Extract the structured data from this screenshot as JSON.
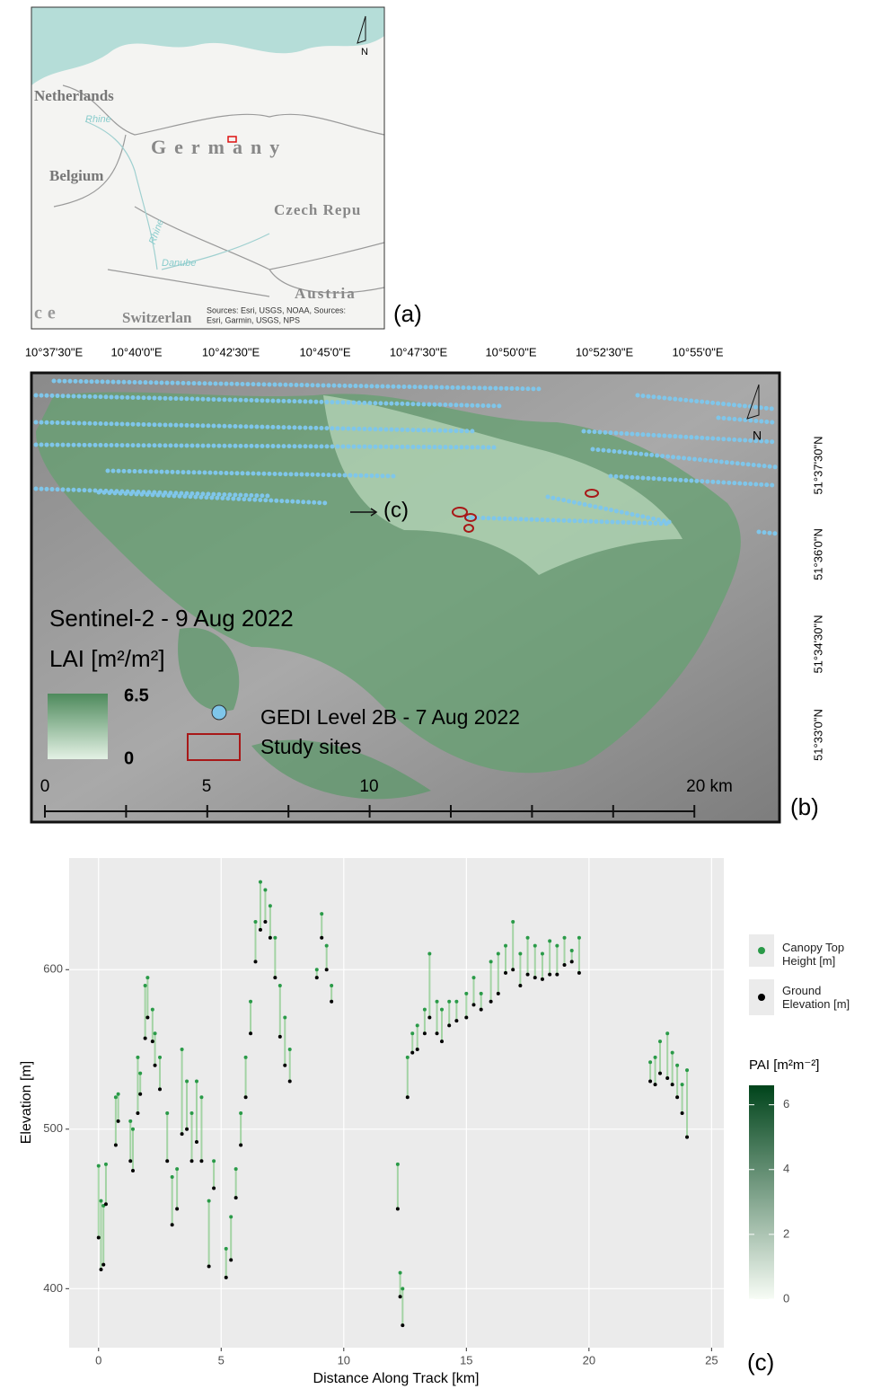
{
  "panel_a": {
    "panel_label": "(a)",
    "north": "N",
    "netherlands": "Netherlands",
    "rhine_north": "Rhine",
    "germany": "Germany",
    "belgium": "Belgium",
    "czech": "Czech Repu",
    "rhine_south": "Rhine",
    "danube": "Danube",
    "austria": "Austria",
    "switzerland": "Switzerlan",
    "france": "ce",
    "attribution_1": "Sources: Esri, USGS, NOAA, Sources:",
    "attribution_2": "Esri, Garmin, USGS, NPS"
  },
  "panel_b": {
    "panel_label": "(b)",
    "north": "N",
    "lon_ticks": [
      "10°37'30\"E",
      "10°40'0\"E",
      "10°42'30\"E",
      "10°45'0\"E",
      "10°47'30\"E",
      "10°50'0\"E",
      "10°52'30\"E",
      "10°55'0\"E"
    ],
    "lat_ticks": [
      "51°37'30\"N",
      "51°36'0\"N",
      "51°34'30\"N",
      "51°33'0\"N"
    ],
    "title": "Sentinel-2 - 9 Aug 2022",
    "legend_title": "LAI [m²/m²]",
    "lai_max": 6.5,
    "lai_min": 0,
    "gedi_label": "GEDI Level 2B - 7 Aug 2022",
    "sites_label": "Study sites",
    "arrow_label": "(c)",
    "scale_labels": [
      "0",
      "5",
      "10",
      "20 km"
    ]
  },
  "chart_data": {
    "type": "scatter",
    "panel_label": "(c)",
    "x_label": "Distance Along Track [km]",
    "y_label": "Elevation [m]",
    "x": [
      0.0,
      0.1,
      0.2,
      0.3,
      0.7,
      0.8,
      1.3,
      1.4,
      1.6,
      1.7,
      1.9,
      2.0,
      2.2,
      2.3,
      2.5,
      2.8,
      3.0,
      3.2,
      3.4,
      3.6,
      3.8,
      4.0,
      4.2,
      4.5,
      4.7,
      5.2,
      5.4,
      5.6,
      5.8,
      6.0,
      6.2,
      6.4,
      6.6,
      6.8,
      7.0,
      7.2,
      7.4,
      7.6,
      7.8,
      8.9,
      9.1,
      9.3,
      9.5,
      12.2,
      12.3,
      12.4,
      12.6,
      12.8,
      13.0,
      13.3,
      13.5,
      13.8,
      14.0,
      14.3,
      14.6,
      15.0,
      15.3,
      15.6,
      16.0,
      16.3,
      16.6,
      16.9,
      17.2,
      17.5,
      17.8,
      18.1,
      18.4,
      18.7,
      19.0,
      19.3,
      19.6,
      22.5,
      22.7,
      22.9,
      23.2,
      23.4,
      23.6,
      23.8,
      24.0
    ],
    "series": [
      {
        "name": "Canopy Top Height [m]",
        "color": "#2a9a48",
        "values": [
          477,
          455,
          452,
          478,
          520,
          522,
          505,
          500,
          545,
          535,
          590,
          595,
          575,
          560,
          545,
          510,
          470,
          475,
          550,
          530,
          510,
          530,
          520,
          455,
          480,
          425,
          445,
          475,
          510,
          545,
          580,
          630,
          655,
          650,
          640,
          620,
          590,
          570,
          550,
          600,
          635,
          615,
          590,
          478,
          410,
          400,
          545,
          560,
          565,
          575,
          610,
          580,
          575,
          580,
          580,
          585,
          595,
          585,
          605,
          610,
          615,
          630,
          610,
          620,
          615,
          610,
          618,
          615,
          620,
          612,
          620,
          542,
          545,
          555,
          560,
          548,
          540,
          528,
          537
        ]
      },
      {
        "name": "Ground Elevation [m]",
        "color": "#000000",
        "values": [
          432,
          412,
          415,
          453,
          490,
          505,
          480,
          474,
          510,
          522,
          557,
          570,
          555,
          540,
          525,
          480,
          440,
          450,
          497,
          500,
          480,
          492,
          480,
          414,
          463,
          407,
          418,
          457,
          490,
          520,
          560,
          605,
          625,
          630,
          620,
          595,
          558,
          540,
          530,
          595,
          620,
          600,
          580,
          450,
          395,
          377,
          520,
          548,
          550,
          560,
          570,
          560,
          555,
          565,
          568,
          570,
          578,
          575,
          580,
          585,
          598,
          600,
          590,
          597,
          595,
          594,
          597,
          597,
          603,
          605,
          598,
          530,
          528,
          535,
          532,
          528,
          520,
          510,
          495
        ]
      }
    ],
    "xlim": [
      -1.2,
      25.5
    ],
    "xticks": [
      0,
      5,
      10,
      15,
      20,
      25
    ],
    "ylim": [
      363,
      670
    ],
    "yticks": [
      400,
      500,
      600
    ],
    "grid": true,
    "colorbar_title": "PAI [m²m⁻²]",
    "clim": [
      0,
      6.6
    ],
    "cticks": [
      0,
      2,
      4,
      6
    ],
    "cmap": [
      "#f7fcf5",
      "#00441b"
    ]
  }
}
